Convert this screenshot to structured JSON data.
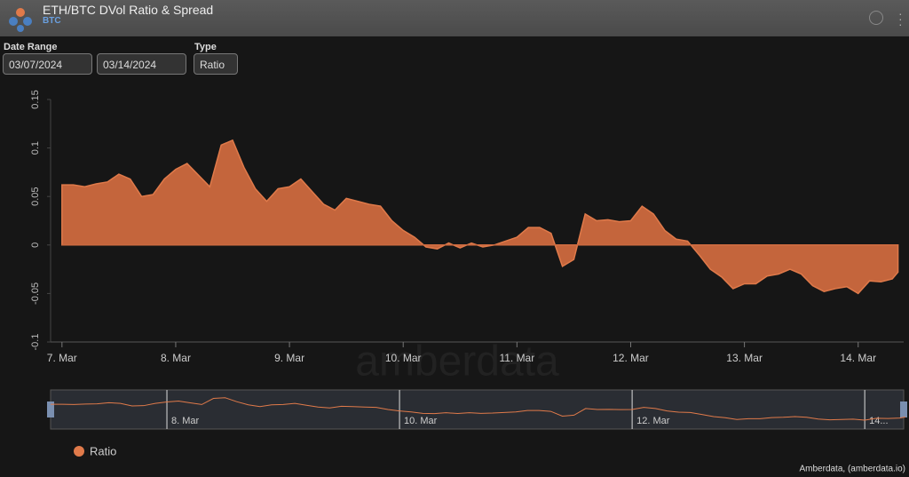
{
  "header": {
    "title": "ETH/BTC DVol Ratio & Spread",
    "subtitle": "BTC"
  },
  "controls": {
    "date_range_label": "Date Range",
    "start_date": "03/07/2024",
    "end_date": "03/14/2024",
    "type_label": "Type",
    "type_value": "Ratio"
  },
  "watermark": "amberdata",
  "credit": "Amberdata, (amberdata.io)",
  "chart_data": {
    "type": "area",
    "x": [
      7.0,
      7.1,
      7.2,
      7.3,
      7.4,
      7.5,
      7.6,
      7.7,
      7.8,
      7.9,
      8.0,
      8.1,
      8.2,
      8.3,
      8.4,
      8.5,
      8.6,
      8.7,
      8.8,
      8.9,
      9.0,
      9.1,
      9.2,
      9.3,
      9.4,
      9.5,
      9.6,
      9.7,
      9.8,
      9.9,
      10.0,
      10.1,
      10.2,
      10.3,
      10.4,
      10.5,
      10.6,
      10.7,
      10.8,
      10.9,
      11.0,
      11.1,
      11.2,
      11.3,
      11.4,
      11.5,
      11.6,
      11.7,
      11.8,
      11.9,
      12.0,
      12.1,
      12.2,
      12.3,
      12.4,
      12.5,
      12.6,
      12.7,
      12.8,
      12.9,
      13.0,
      13.1,
      13.2,
      13.3,
      13.4,
      13.5,
      13.6,
      13.7,
      13.8,
      13.9,
      14.0,
      14.1,
      14.2,
      14.3,
      14.35
    ],
    "series": [
      {
        "name": "Ratio",
        "color": "#e07a4a",
        "fill": "#c4653c",
        "values": [
          0.062,
          0.062,
          0.06,
          0.063,
          0.065,
          0.073,
          0.068,
          0.05,
          0.052,
          0.068,
          0.078,
          0.084,
          0.072,
          0.06,
          0.103,
          0.108,
          0.08,
          0.058,
          0.045,
          0.058,
          0.06,
          0.068,
          0.055,
          0.042,
          0.036,
          0.048,
          0.045,
          0.042,
          0.04,
          0.025,
          0.015,
          0.008,
          -0.002,
          -0.004,
          0.002,
          -0.003,
          0.002,
          -0.002,
          0.0,
          0.004,
          0.008,
          0.018,
          0.018,
          0.012,
          -0.022,
          -0.015,
          0.032,
          0.025,
          0.026,
          0.024,
          0.025,
          0.04,
          0.032,
          0.015,
          0.006,
          0.004,
          -0.01,
          -0.025,
          -0.033,
          -0.045,
          -0.04,
          -0.04,
          -0.032,
          -0.03,
          -0.025,
          -0.03,
          -0.042,
          -0.048,
          -0.045,
          -0.043,
          -0.05,
          -0.037,
          -0.038,
          -0.035,
          -0.028
        ]
      }
    ],
    "xlim": [
      6.9,
      14.4
    ],
    "xticks": [
      {
        "value": 7,
        "label": "7. Mar"
      },
      {
        "value": 8,
        "label": "8. Mar"
      },
      {
        "value": 9,
        "label": "9. Mar"
      },
      {
        "value": 10,
        "label": "10. Mar"
      },
      {
        "value": 11,
        "label": "11. Mar"
      },
      {
        "value": 12,
        "label": "12. Mar"
      },
      {
        "value": 13,
        "label": "13. Mar"
      },
      {
        "value": 14,
        "label": "14. Mar"
      }
    ],
    "ylim": [
      -0.1,
      0.15
    ],
    "yticks": [
      -0.1,
      -0.05,
      0,
      0.05,
      0.1,
      0.15
    ],
    "navigator": {
      "xlim": [
        7.0,
        14.35
      ],
      "xticks": [
        {
          "value": 8,
          "label": "8. Mar"
        },
        {
          "value": 10,
          "label": "10. Mar"
        },
        {
          "value": 12,
          "label": "12. Mar"
        },
        {
          "value": 14,
          "label": "14..."
        }
      ]
    },
    "legend": "bottom-left"
  }
}
